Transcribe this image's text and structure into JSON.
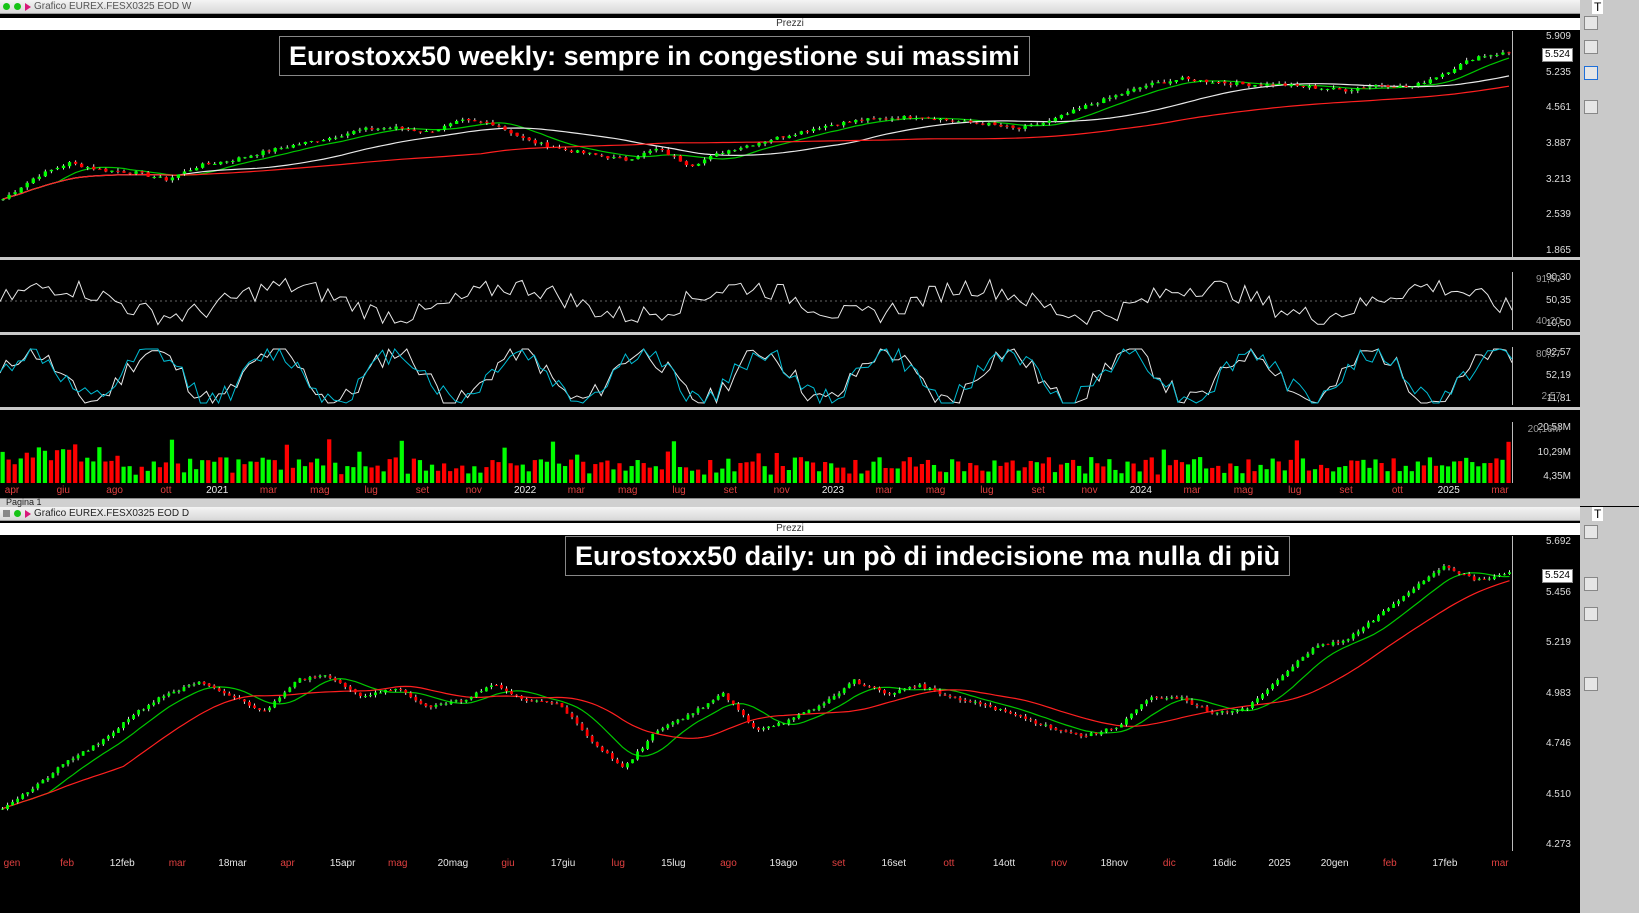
{
  "windows": [
    {
      "title": "Grafico EUREX.FESX0325 EOD W",
      "pane_label": "Prezzi",
      "banner": "Eurostoxx50 weekly: sempre in congestione sui massimi"
    },
    {
      "title": "Grafico EUREX.FESX0325 EOD D",
      "pane_label": "Prezzi",
      "banner": "Eurostoxx50 daily: un pò di indecisione ma nulla di più"
    }
  ],
  "right_toolbar_text": [
    "T",
    "T"
  ],
  "tab_label": "Pagina 1",
  "colors": {
    "up": "#00ff00",
    "down": "#ff0000",
    "ma_fast": "#00c800",
    "ma_mid": "#e8e8e8",
    "ma_slow": "#ff2020",
    "oscillator": "#e8e8e8",
    "stoch_k": "#e8e8e8",
    "stoch_d": "#00bcd4",
    "accent": "#1e6fd9"
  },
  "chart_data": [
    {
      "type": "candlestick",
      "name": "weekly-prices",
      "yticks": [
        "5.909",
        "5.235",
        "4.561",
        "3.887",
        "3.213",
        "2.539",
        "1.865"
      ],
      "ylim": [
        1865,
        5909
      ],
      "last_price": "5.524",
      "xticks": [
        "apr",
        "giu",
        "ago",
        "ott",
        "2021",
        "mar",
        "mag",
        "lug",
        "set",
        "nov",
        "2022",
        "mar",
        "mag",
        "lug",
        "set",
        "nov",
        "2023",
        "mar",
        "mag",
        "lug",
        "set",
        "nov",
        "2024",
        "mar",
        "mag",
        "lug",
        "set",
        "ott",
        "2025",
        "mar"
      ],
      "close_path": [
        [
          0,
          2900
        ],
        [
          4,
          3300
        ],
        [
          8,
          3550
        ],
        [
          12,
          3420
        ],
        [
          16,
          3380
        ],
        [
          20,
          3250
        ],
        [
          24,
          3500
        ],
        [
          28,
          3600
        ],
        [
          32,
          3750
        ],
        [
          36,
          3880
        ],
        [
          40,
          4000
        ],
        [
          44,
          4150
        ],
        [
          48,
          4180
        ],
        [
          52,
          4100
        ],
        [
          56,
          4300
        ],
        [
          60,
          4250
        ],
        [
          64,
          3950
        ],
        [
          68,
          3800
        ],
        [
          72,
          3700
        ],
        [
          76,
          3600
        ],
        [
          80,
          3800
        ],
        [
          84,
          3500
        ],
        [
          88,
          3750
        ],
        [
          92,
          3900
        ],
        [
          96,
          4050
        ],
        [
          100,
          4200
        ],
        [
          104,
          4300
        ],
        [
          108,
          4350
        ],
        [
          112,
          4380
        ],
        [
          116,
          4300
        ],
        [
          120,
          4250
        ],
        [
          124,
          4150
        ],
        [
          128,
          4300
        ],
        [
          132,
          4550
        ],
        [
          136,
          4750
        ],
        [
          140,
          4950
        ],
        [
          144,
          5050
        ],
        [
          148,
          5000
        ],
        [
          152,
          4950
        ],
        [
          156,
          4950
        ],
        [
          160,
          4900
        ],
        [
          164,
          4850
        ],
        [
          168,
          4950
        ],
        [
          172,
          4900
        ],
        [
          176,
          5150
        ],
        [
          180,
          5450
        ],
        [
          184,
          5524
        ]
      ],
      "overlays": [
        "ma_fast",
        "ma_mid",
        "ma_slow"
      ]
    },
    {
      "type": "line",
      "name": "weekly-oscillator",
      "yticks": [
        "90,30",
        "50,35",
        "10,50"
      ],
      "extra_labels": [
        "91,50",
        "40,20"
      ],
      "ylim": [
        10.5,
        90.3
      ],
      "last_value": "73"
    },
    {
      "type": "line",
      "name": "weekly-stochastic",
      "yticks": [
        "92,57",
        "52,19",
        "11,81"
      ],
      "extra_labels": [
        "80,37",
        "2,57"
      ],
      "ylim": [
        2.57,
        92.57
      ]
    },
    {
      "type": "bar",
      "name": "weekly-volume",
      "yticks": [
        "20,58M",
        "10,29M",
        "4,35M"
      ],
      "extra_labels": [
        "20,16M"
      ],
      "ylim": [
        0,
        20.58
      ]
    },
    {
      "type": "candlestick",
      "name": "daily-prices",
      "yticks": [
        "5.692",
        "5.456",
        "5.219",
        "4.983",
        "4.746",
        "4.510",
        "4.273"
      ],
      "ylim": [
        4273,
        5692
      ],
      "last_price": "5.524",
      "xticks": [
        "gen",
        "feb",
        "12feb",
        "mar",
        "18mar",
        "apr",
        "15apr",
        "mag",
        "20mag",
        "giu",
        "17giu",
        "lug",
        "15lug",
        "ago",
        "19ago",
        "set",
        "16set",
        "ott",
        "14ott",
        "nov",
        "18nov",
        "dic",
        "16dic",
        "2025",
        "20gen",
        "feb",
        "17feb",
        "mar"
      ],
      "close_path": [
        [
          0,
          4470
        ],
        [
          6,
          4560
        ],
        [
          12,
          4680
        ],
        [
          18,
          4760
        ],
        [
          24,
          4890
        ],
        [
          30,
          4980
        ],
        [
          36,
          5030
        ],
        [
          42,
          4970
        ],
        [
          48,
          4900
        ],
        [
          54,
          5050
        ],
        [
          60,
          5060
        ],
        [
          66,
          4970
        ],
        [
          72,
          5010
        ],
        [
          78,
          4920
        ],
        [
          84,
          4950
        ],
        [
          90,
          5020
        ],
        [
          96,
          4950
        ],
        [
          102,
          4940
        ],
        [
          108,
          4760
        ],
        [
          114,
          4650
        ],
        [
          120,
          4820
        ],
        [
          126,
          4890
        ],
        [
          132,
          4980
        ],
        [
          138,
          4820
        ],
        [
          144,
          4860
        ],
        [
          150,
          4930
        ],
        [
          156,
          5040
        ],
        [
          162,
          4980
        ],
        [
          168,
          5020
        ],
        [
          174,
          4960
        ],
        [
          180,
          4930
        ],
        [
          186,
          4880
        ],
        [
          192,
          4830
        ],
        [
          198,
          4790
        ],
        [
          204,
          4830
        ],
        [
          210,
          4960
        ],
        [
          216,
          4960
        ],
        [
          222,
          4890
        ],
        [
          228,
          4920
        ],
        [
          234,
          5050
        ],
        [
          240,
          5190
        ],
        [
          246,
          5220
        ],
        [
          252,
          5330
        ],
        [
          258,
          5450
        ],
        [
          264,
          5560
        ],
        [
          270,
          5490
        ],
        [
          276,
          5524
        ]
      ],
      "overlays": [
        "ma_fast",
        "ma_slow"
      ]
    }
  ]
}
